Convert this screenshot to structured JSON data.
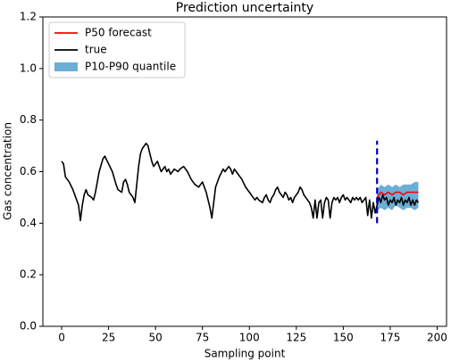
{
  "chart_data": {
    "type": "line",
    "title": "Prediction uncertainty",
    "xlabel": "Sampling point",
    "ylabel": "Gas concentration",
    "xlim": [
      -10,
      205
    ],
    "ylim": [
      0,
      1.2
    ],
    "xticks": [
      0,
      25,
      50,
      75,
      100,
      125,
      150,
      175,
      200
    ],
    "yticks": [
      {
        "value": 0,
        "label": "0.0"
      },
      {
        "value": 0.2,
        "label": "0.2"
      },
      {
        "value": 0.4,
        "label": "0.4"
      },
      {
        "value": 0.6,
        "label": "0.6"
      },
      {
        "value": 0.8,
        "label": "0.8"
      },
      {
        "value": 1.0,
        "label": "1.0"
      },
      {
        "value": 1.2,
        "label": "1.2"
      }
    ],
    "legend": "upper left",
    "series": [
      {
        "name": "P50 forecast",
        "color": "#ff0000",
        "x": [
          168,
          170,
          172,
          174,
          176,
          178,
          180,
          182,
          184,
          186,
          188,
          190
        ],
        "values": [
          0.5,
          0.52,
          0.51,
          0.52,
          0.51,
          0.52,
          0.52,
          0.51,
          0.52,
          0.52,
          0.52,
          0.52
        ]
      },
      {
        "name": "true",
        "color": "#000000",
        "x": [
          0,
          1,
          2,
          4,
          6,
          8,
          9,
          10,
          11,
          12,
          13,
          14,
          16,
          17,
          18,
          20,
          22,
          23,
          25,
          27,
          29,
          30,
          32,
          33,
          34,
          35,
          36,
          38,
          39,
          40,
          41,
          42,
          43,
          45,
          46,
          47,
          48,
          49,
          50,
          51,
          52,
          53,
          54,
          55,
          56,
          57,
          58,
          60,
          62,
          63,
          65,
          67,
          69,
          71,
          73,
          75,
          77,
          78,
          79,
          80,
          81,
          82,
          84,
          86,
          87,
          89,
          90,
          91,
          92,
          94,
          96,
          98,
          100,
          102,
          103,
          104,
          105,
          107,
          108,
          109,
          110,
          111,
          112,
          113,
          114,
          115,
          116,
          117,
          118,
          119,
          120,
          121,
          122,
          123,
          124,
          125,
          126,
          127,
          128,
          129,
          130,
          131,
          132,
          133,
          134,
          135,
          136,
          137,
          138,
          139,
          140,
          141,
          142,
          143,
          144,
          145,
          146,
          147,
          148,
          149,
          150,
          151,
          152,
          153,
          154,
          155,
          156,
          157,
          158,
          159,
          160,
          161,
          162,
          163,
          164,
          165,
          166,
          167,
          168,
          169,
          170,
          171,
          172,
          173,
          174,
          175,
          176,
          177,
          178,
          179,
          180,
          181,
          182,
          183,
          184,
          185,
          186,
          187,
          188,
          189,
          190
        ],
        "values": [
          0.64,
          0.63,
          0.58,
          0.56,
          0.53,
          0.49,
          0.47,
          0.41,
          0.47,
          0.51,
          0.53,
          0.51,
          0.5,
          0.49,
          0.52,
          0.6,
          0.65,
          0.66,
          0.63,
          0.6,
          0.55,
          0.53,
          0.52,
          0.56,
          0.57,
          0.55,
          0.52,
          0.5,
          0.48,
          0.55,
          0.62,
          0.67,
          0.69,
          0.71,
          0.7,
          0.67,
          0.64,
          0.62,
          0.63,
          0.64,
          0.62,
          0.6,
          0.61,
          0.62,
          0.6,
          0.61,
          0.59,
          0.61,
          0.6,
          0.61,
          0.62,
          0.6,
          0.57,
          0.55,
          0.54,
          0.56,
          0.52,
          0.49,
          0.46,
          0.42,
          0.48,
          0.54,
          0.58,
          0.61,
          0.6,
          0.62,
          0.61,
          0.59,
          0.61,
          0.59,
          0.57,
          0.54,
          0.52,
          0.5,
          0.49,
          0.5,
          0.49,
          0.48,
          0.5,
          0.51,
          0.49,
          0.48,
          0.5,
          0.51,
          0.53,
          0.54,
          0.52,
          0.51,
          0.5,
          0.52,
          0.51,
          0.49,
          0.5,
          0.48,
          0.5,
          0.51,
          0.52,
          0.54,
          0.53,
          0.51,
          0.5,
          0.49,
          0.48,
          0.46,
          0.42,
          0.49,
          0.42,
          0.48,
          0.49,
          0.42,
          0.48,
          0.5,
          0.49,
          0.42,
          0.48,
          0.5,
          0.49,
          0.5,
          0.48,
          0.5,
          0.51,
          0.49,
          0.5,
          0.49,
          0.48,
          0.5,
          0.49,
          0.5,
          0.49,
          0.5,
          0.48,
          0.49,
          0.5,
          0.43,
          0.49,
          0.42,
          0.48,
          0.44,
          0.47,
          0.5,
          0.48,
          0.51,
          0.49,
          0.5,
          0.47,
          0.49,
          0.48,
          0.5,
          0.47,
          0.49,
          0.48,
          0.5,
          0.47,
          0.49,
          0.48,
          0.5,
          0.47,
          0.49,
          0.47,
          0.49,
          0.48
        ]
      }
    ],
    "band": {
      "name": "P10-P90 quantile",
      "color": "#6baed6",
      "x": [
        168,
        170,
        172,
        174,
        176,
        178,
        180,
        182,
        184,
        186,
        188,
        190
      ],
      "low": [
        0.45,
        0.46,
        0.45,
        0.46,
        0.45,
        0.47,
        0.46,
        0.45,
        0.46,
        0.46,
        0.45,
        0.46
      ],
      "high": [
        0.53,
        0.55,
        0.54,
        0.55,
        0.54,
        0.55,
        0.54,
        0.55,
        0.55,
        0.55,
        0.56,
        0.56
      ]
    },
    "vline": {
      "x": 168,
      "ymin": 0.4,
      "ymax": 0.72,
      "color": "#0000cc"
    }
  }
}
